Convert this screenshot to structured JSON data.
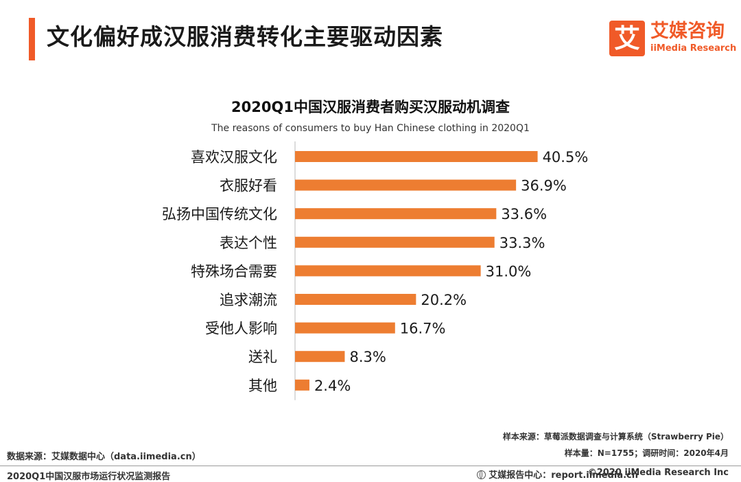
{
  "header": {
    "title": "文化偏好成汉服消费转化主要驱动因素",
    "logo_glyph": "艾",
    "logo_cn": "艾媒咨询",
    "logo_en": "iiMedia Research",
    "accent": "#f05a28"
  },
  "chart_data": {
    "type": "bar",
    "orientation": "horizontal",
    "title": "2020Q1中国汉服消费者购买汉服动机调查",
    "subtitle": "The reasons of consumers to buy Han Chinese clothing  in 2020Q1",
    "categories": [
      "喜欢汉服文化",
      "衣服好看",
      "弘扬中国传统文化",
      "表达个性",
      "特殊场合需要",
      "追求潮流",
      "受他人影响",
      "送礼",
      "其他"
    ],
    "values": [
      40.5,
      36.9,
      33.6,
      33.3,
      31.0,
      20.2,
      16.7,
      8.3,
      2.4
    ],
    "value_labels": [
      "40.5%",
      "36.9%",
      "33.6%",
      "33.3%",
      "31.0%",
      "20.2%",
      "16.7%",
      "8.3%",
      "2.4%"
    ],
    "unit": "%",
    "xlim": [
      0,
      50
    ],
    "bar_color": "#ed7d31",
    "grid": false,
    "legend": "none"
  },
  "notes": {
    "sample_source": "样本来源：草莓派数据调查与计算系统（Strawberry Pie）",
    "sample_size": "样本量：N=1755；调研时间：2020年4月",
    "data_source": "数据来源：艾媒数据中心（data.iimedia.cn）",
    "report_name": "2020Q1中国汉服市场运行状况监测报告",
    "report_center": "艾媒报告中心：report.iimedia.cn",
    "copyright": "©2020  iiMedia Research  Inc"
  }
}
